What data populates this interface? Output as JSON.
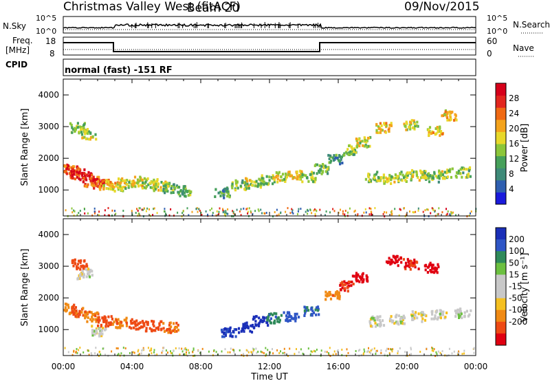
{
  "header": {
    "station": "Christmas Valley West (fitACF)",
    "beam": "Beam 20",
    "date": "09/Nov/2015"
  },
  "panels": {
    "nsky_label": "N.Sky",
    "nsky_ticks": [
      "10^5",
      "10^0"
    ],
    "nsearch_label": "N.Search",
    "freq_label_1": "Freq.",
    "freq_label_2": "[MHz]",
    "freq_ticks": [
      "18",
      "8"
    ],
    "nave_label": "Nave",
    "nave_ticks": [
      "60",
      "0"
    ],
    "cpid_label": "CPID",
    "cpid_text": "normal (fast) -151 RF"
  },
  "colors": {
    "power": [
      "#1a1adc",
      "#2f5fb0",
      "#3e8a78",
      "#46a05a",
      "#8cc63a",
      "#e8d82a",
      "#f4a31c",
      "#f06a14",
      "#e2261e",
      "#d6001a"
    ],
    "velocity": [
      "#1a2fb8",
      "#2f56c6",
      "#2f8a5a",
      "#6cc040",
      "#c8c8c8",
      "#c8c8c8",
      "#f5c020",
      "#f08a14",
      "#ee4a14",
      "#e00010"
    ]
  },
  "chart_data": [
    {
      "type": "heatmap",
      "title": "",
      "quantity": "Power",
      "ylabel": "Slant Range [km]",
      "yticks": [
        "1000",
        "2000",
        "3000",
        "4000"
      ],
      "ylim": [
        180,
        4500
      ],
      "colorbar_label": "Power [dB]",
      "colorbar_ticks": [
        "4",
        "8",
        "12",
        "16",
        "20",
        "24",
        "28"
      ],
      "colorbar_range": [
        0,
        32
      ],
      "features": [
        {
          "t": 0.1,
          "r": 1700,
          "v": 24
        },
        {
          "t": 0.4,
          "r": 1650,
          "v": 26
        },
        {
          "t": 0.8,
          "r": 1550,
          "v": 28
        },
        {
          "t": 1.2,
          "r": 1450,
          "v": 28
        },
        {
          "t": 1.6,
          "r": 1300,
          "v": 24
        },
        {
          "t": 2.0,
          "r": 1250,
          "v": 28
        },
        {
          "t": 2.4,
          "r": 1200,
          "v": 20
        },
        {
          "t": 3.0,
          "r": 1150,
          "v": 18
        },
        {
          "t": 3.6,
          "r": 1250,
          "v": 16
        },
        {
          "t": 4.4,
          "r": 1300,
          "v": 18
        },
        {
          "t": 5.0,
          "r": 1250,
          "v": 16
        },
        {
          "t": 5.6,
          "r": 1150,
          "v": 16
        },
        {
          "t": 6.2,
          "r": 1100,
          "v": 12
        },
        {
          "t": 7.0,
          "r": 1000,
          "v": 12
        },
        {
          "t": 9.2,
          "r": 950,
          "v": 10
        },
        {
          "t": 10.2,
          "r": 1200,
          "v": 14
        },
        {
          "t": 11.0,
          "r": 1250,
          "v": 16
        },
        {
          "t": 11.8,
          "r": 1350,
          "v": 14
        },
        {
          "t": 12.6,
          "r": 1450,
          "v": 16
        },
        {
          "t": 13.4,
          "r": 1500,
          "v": 18
        },
        {
          "t": 14.2,
          "r": 1450,
          "v": 14
        },
        {
          "t": 15.0,
          "r": 1700,
          "v": 12
        },
        {
          "t": 15.8,
          "r": 2000,
          "v": 10
        },
        {
          "t": 16.6,
          "r": 2300,
          "v": 14
        },
        {
          "t": 17.4,
          "r": 2550,
          "v": 16
        },
        {
          "t": 18.0,
          "r": 1450,
          "v": 14
        },
        {
          "t": 19.0,
          "r": 1400,
          "v": 16
        },
        {
          "t": 19.8,
          "r": 1450,
          "v": 14
        },
        {
          "t": 20.6,
          "r": 1500,
          "v": 16
        },
        {
          "t": 21.4,
          "r": 1450,
          "v": 14
        },
        {
          "t": 22.2,
          "r": 1550,
          "v": 16
        },
        {
          "t": 23.2,
          "r": 1600,
          "v": 14
        },
        {
          "t": 0.8,
          "r": 3000,
          "v": 14
        },
        {
          "t": 1.4,
          "r": 2800,
          "v": 16
        },
        {
          "t": 18.6,
          "r": 3000,
          "v": 18
        },
        {
          "t": 20.2,
          "r": 3100,
          "v": 16
        },
        {
          "t": 21.6,
          "r": 2900,
          "v": 18
        },
        {
          "t": 22.4,
          "r": 3400,
          "v": 20
        }
      ]
    },
    {
      "type": "heatmap",
      "title": "",
      "quantity": "Velocity",
      "xlabel": "Time UT",
      "xticks": [
        "00:00",
        "04:00",
        "08:00",
        "12:00",
        "16:00",
        "20:00",
        "00:00"
      ],
      "ylabel": "Slant Range [km]",
      "yticks": [
        "1000",
        "2000",
        "3000",
        "4000"
      ],
      "ylim": [
        180,
        4500
      ],
      "colorbar_label": "Velocity [m s⁻¹]",
      "colorbar_ticks": [
        "200",
        "100",
        "50",
        "15",
        "-15",
        "-50",
        "-100",
        "-200"
      ],
      "features": [
        {
          "t": 0.3,
          "r": 1700,
          "v": -60
        },
        {
          "t": 0.9,
          "r": 1600,
          "v": -80
        },
        {
          "t": 1.6,
          "r": 1450,
          "v": -70
        },
        {
          "t": 2.3,
          "r": 1300,
          "v": -90
        },
        {
          "t": 3.2,
          "r": 1250,
          "v": -70
        },
        {
          "t": 4.2,
          "r": 1200,
          "v": -100
        },
        {
          "t": 5.2,
          "r": 1150,
          "v": -100
        },
        {
          "t": 6.2,
          "r": 1100,
          "v": -80
        },
        {
          "t": 2.0,
          "r": 1000,
          "v": 0
        },
        {
          "t": 9.6,
          "r": 950,
          "v": 150
        },
        {
          "t": 10.6,
          "r": 1100,
          "v": 200
        },
        {
          "t": 11.4,
          "r": 1300,
          "v": 180
        },
        {
          "t": 12.2,
          "r": 1400,
          "v": 60
        },
        {
          "t": 13.2,
          "r": 1450,
          "v": 120
        },
        {
          "t": 14.4,
          "r": 1600,
          "v": 80
        },
        {
          "t": 15.6,
          "r": 2100,
          "v": -60
        },
        {
          "t": 16.4,
          "r": 2400,
          "v": -150
        },
        {
          "t": 17.2,
          "r": 2700,
          "v": -200
        },
        {
          "t": 18.2,
          "r": 1300,
          "v": 0
        },
        {
          "t": 19.4,
          "r": 1350,
          "v": 0
        },
        {
          "t": 20.6,
          "r": 1450,
          "v": 0
        },
        {
          "t": 21.8,
          "r": 1500,
          "v": 0
        },
        {
          "t": 23.2,
          "r": 1550,
          "v": 0
        },
        {
          "t": 19.2,
          "r": 3200,
          "v": -200
        },
        {
          "t": 20.2,
          "r": 3100,
          "v": -150
        },
        {
          "t": 21.4,
          "r": 3000,
          "v": -200
        },
        {
          "t": 0.9,
          "r": 3100,
          "v": -100
        },
        {
          "t": 1.2,
          "r": 2800,
          "v": 0
        }
      ]
    }
  ]
}
